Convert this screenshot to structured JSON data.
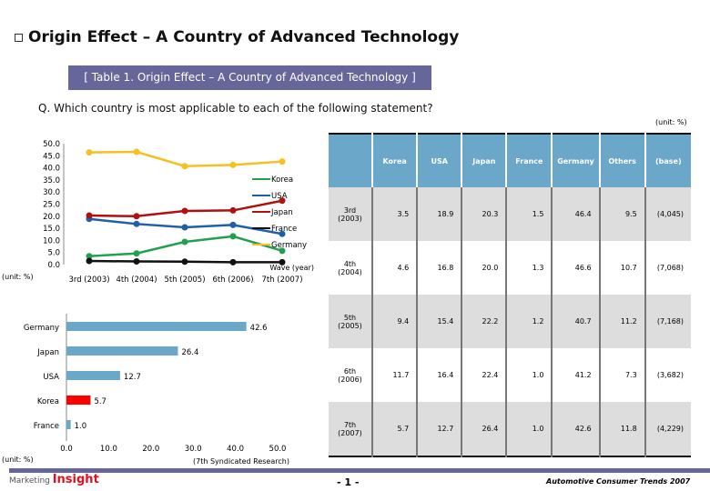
{
  "title": "Origin Effect – A Country of Advanced Technology",
  "banner": "[ Table 1. Origin Effect – A Country of Advanced Technology ]",
  "question": "Q. Which country is most applicable to each of the following statement?",
  "table": {
    "unit": "(unit: %)",
    "headers": [
      "",
      "Korea",
      "USA",
      "Japan",
      "France",
      "Germany",
      "Others",
      "(base)"
    ],
    "rows": [
      [
        "3rd (2003)",
        "3.5",
        "18.9",
        "20.3",
        "1.5",
        "46.4",
        "9.5",
        "(4,045)"
      ],
      [
        "4th (2004)",
        "4.6",
        "16.8",
        "20.0",
        "1.3",
        "46.6",
        "10.7",
        "(7,068)"
      ],
      [
        "5th (2005)",
        "9.4",
        "15.4",
        "22.2",
        "1.2",
        "40.7",
        "11.2",
        "(7,168)"
      ],
      [
        "6th (2006)",
        "11.7",
        "16.4",
        "22.4",
        "1.0",
        "41.2",
        "7.3",
        "(3,682)"
      ],
      [
        "7th (2007)",
        "5.7",
        "12.7",
        "26.4",
        "1.0",
        "42.6",
        "11.8",
        "(4,229)"
      ]
    ]
  },
  "chart_data": [
    {
      "type": "line",
      "categories": [
        "3rd (2003)",
        "4th (2004)",
        "5th (2005)",
        "6th (2006)",
        "7th (2007)"
      ],
      "ylim": [
        0,
        50
      ],
      "yticks": [
        "0.0",
        "5.0",
        "10.0",
        "15.0",
        "20.0",
        "25.0",
        "30.0",
        "35.0",
        "40.0",
        "45.0",
        "50.0"
      ],
      "ylabel": "(unit: %)",
      "xlabel": "Wave (year)",
      "legend": "right",
      "series": [
        {
          "name": "Korea",
          "color": "#22a050",
          "values": [
            3.5,
            4.6,
            9.4,
            11.7,
            5.7
          ]
        },
        {
          "name": "USA",
          "color": "#1f5fa8",
          "values": [
            18.9,
            16.8,
            15.4,
            16.4,
            12.7
          ]
        },
        {
          "name": "Japan",
          "color": "#b01010",
          "values": [
            20.3,
            20.0,
            22.2,
            22.4,
            26.4
          ]
        },
        {
          "name": "France",
          "color": "#111111",
          "values": [
            1.5,
            1.3,
            1.2,
            1.0,
            1.0
          ]
        },
        {
          "name": "Germany",
          "color": "#f5c020",
          "values": [
            46.4,
            46.6,
            40.7,
            41.2,
            42.6
          ]
        }
      ]
    },
    {
      "type": "bar",
      "orientation": "horizontal",
      "categories": [
        "Germany",
        "Japan",
        "USA",
        "Korea",
        "France"
      ],
      "values": [
        42.6,
        26.4,
        12.7,
        5.7,
        1.0
      ],
      "colors": [
        "#6ba7c8",
        "#6ba7c8",
        "#6ba7c8",
        "#ff0000",
        "#6ba7c8"
      ],
      "xlim": [
        0,
        50
      ],
      "xticks": [
        "0.0",
        "10.0",
        "20.0",
        "30.0",
        "40.0",
        "50.0"
      ],
      "ylabel": "(unit: %)",
      "xlabel": "(7th  Syndicated Research)"
    }
  ],
  "footer": {
    "page": "- 1 -",
    "trend": "Automotive Consumer Trends 2007",
    "logo": "Marketing Insight"
  }
}
